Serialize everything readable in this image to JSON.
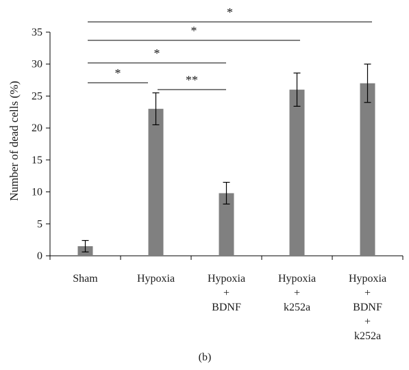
{
  "chart_data": {
    "type": "bar",
    "categories": [
      [
        "Sham"
      ],
      [
        "Hypoxia"
      ],
      [
        "Hypoxia",
        "+",
        "BDNF"
      ],
      [
        "Hypoxia",
        "+",
        "k252a"
      ],
      [
        "Hypoxia",
        "+",
        "BDNF",
        "+",
        "k252a"
      ]
    ],
    "values": [
      1.5,
      23,
      9.8,
      26,
      27
    ],
    "errors": [
      0.9,
      2.5,
      1.7,
      2.6,
      3.0
    ],
    "ylabel": "Number of dead cells (%)",
    "xlabel": "",
    "ylim": [
      0,
      35
    ],
    "yticks": [
      0,
      5,
      10,
      15,
      20,
      25,
      30,
      35
    ],
    "bar_color": "#808080",
    "grid": false,
    "significance": [
      {
        "from": 0,
        "to": 1,
        "label": "*"
      },
      {
        "from": 1,
        "to": 2,
        "label": "**"
      },
      {
        "from": 0,
        "to": 2,
        "label": "*"
      },
      {
        "from": 0,
        "to": 3,
        "label": "*"
      },
      {
        "from": 0,
        "to": 4,
        "label": "*"
      }
    ]
  },
  "panel_label": "(b)"
}
